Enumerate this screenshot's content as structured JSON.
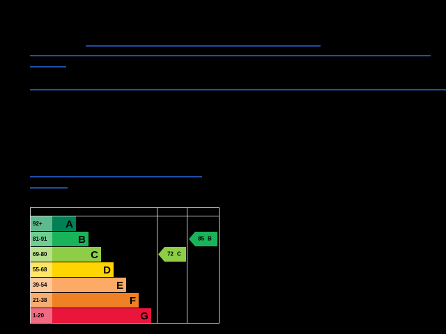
{
  "epc": {
    "bands": [
      {
        "range": "92+",
        "letter": "A",
        "color": "#008054",
        "light": "#5fb98f"
      },
      {
        "range": "81-91",
        "letter": "B",
        "color": "#19b459",
        "light": "#6fcf92"
      },
      {
        "range": "69-80",
        "letter": "C",
        "color": "#8dce46",
        "light": "#b9e08c"
      },
      {
        "range": "55-68",
        "letter": "D",
        "color": "#ffd500",
        "light": "#ffe566"
      },
      {
        "range": "39-54",
        "letter": "E",
        "color": "#fcaa65",
        "light": "#fdc89b"
      },
      {
        "range": "21-38",
        "letter": "F",
        "color": "#ef8023",
        "light": "#f5ad70"
      },
      {
        "range": "1-20",
        "letter": "G",
        "color": "#e9153b",
        "light": "#f06a82"
      }
    ],
    "current": {
      "value": 72,
      "letter": "C",
      "color": "#8dce46"
    },
    "potential": {
      "value": 85,
      "letter": "B",
      "color": "#19b459"
    }
  }
}
